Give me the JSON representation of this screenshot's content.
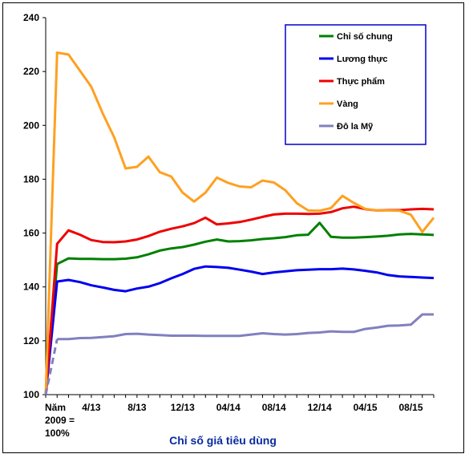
{
  "chart_data": {
    "type": "line",
    "xlabel": "Chỉ số giá tiêu dùng",
    "ylabel": "",
    "ylim": [
      100,
      240
    ],
    "y_ticks": [
      "100",
      "120",
      "140",
      "160",
      "180",
      "200",
      "220",
      "240"
    ],
    "x_ticks": [
      {
        "lines": [
          "Năm",
          "2009 =",
          "100%"
        ],
        "index": 0
      },
      {
        "lines": [
          "4/13"
        ],
        "index": 4
      },
      {
        "lines": [
          "8/13"
        ],
        "index": 8
      },
      {
        "lines": [
          "12/13"
        ],
        "index": 12
      },
      {
        "lines": [
          "04/14"
        ],
        "index": 16
      },
      {
        "lines": [
          "08/14"
        ],
        "index": 20
      },
      {
        "lines": [
          "12/14"
        ],
        "index": 24
      },
      {
        "lines": [
          "04/15"
        ],
        "index": 28
      },
      {
        "lines": [
          "08/15"
        ],
        "index": 32
      }
    ],
    "x_count": 35,
    "grid": false,
    "legend_position": "top-right",
    "series": [
      {
        "name": "Chỉ số chung",
        "color": "#008000",
        "values": [
          100,
          148.5,
          150.6,
          150.4,
          150.4,
          150.3,
          150.3,
          150.5,
          151,
          152.1,
          153.5,
          154.3,
          154.8,
          155.7,
          156.8,
          157.6,
          156.9,
          157,
          157.3,
          157.8,
          158.1,
          158.5,
          159.2,
          159.4,
          163.8,
          158.6,
          158.3,
          158.3,
          158.5,
          158.7,
          159,
          159.5,
          159.7,
          159.5,
          159.3
        ]
      },
      {
        "name": "Lương thực",
        "color": "#0000ee",
        "values": [
          100,
          142,
          142.6,
          141.8,
          140.6,
          139.8,
          138.9,
          138.4,
          139.4,
          140.1,
          141.4,
          143.2,
          144.8,
          146.7,
          147.6,
          147.4,
          147.1,
          146.4,
          145.7,
          144.8,
          145.4,
          145.8,
          146.2,
          146.4,
          146.6,
          146.6,
          146.8,
          146.5,
          146,
          145.4,
          144.4,
          143.9,
          143.7,
          143.5,
          143.3
        ]
      },
      {
        "name": "Thực phẩm",
        "color": "#ee0000",
        "values": [
          100,
          156,
          161,
          159.4,
          157.4,
          156.7,
          156.6,
          156.9,
          157.6,
          158.9,
          160.5,
          161.6,
          162.5,
          163.7,
          165.7,
          163.2,
          163.6,
          164.1,
          165,
          166,
          166.9,
          167.2,
          167.2,
          167.1,
          167.2,
          167.8,
          169.2,
          169.8,
          168.9,
          168.4,
          168.5,
          168.5,
          168.8,
          169,
          168.8
        ]
      },
      {
        "name": "Vàng",
        "color": "#ffa020",
        "values": [
          100,
          227,
          226.3,
          220.3,
          214.3,
          204.4,
          195.6,
          184,
          184.6,
          188.4,
          182.6,
          181,
          175,
          171.7,
          175,
          180.6,
          178.6,
          177.3,
          177,
          179.5,
          178.8,
          175.9,
          171.1,
          168.4,
          168.3,
          169.3,
          173.8,
          171.2,
          169,
          168.4,
          168.4,
          168.3,
          166.8,
          160.4,
          165.7
        ]
      },
      {
        "name": "Đô la Mỹ",
        "color": "#8080c0",
        "dashed_start": true,
        "values": [
          100,
          120.6,
          120.6,
          121,
          121.1,
          121.4,
          121.7,
          122.5,
          122.6,
          122.3,
          122.1,
          121.9,
          121.9,
          121.9,
          121.8,
          121.8,
          121.8,
          121.8,
          122.3,
          122.8,
          122.5,
          122.3,
          122.5,
          122.9,
          123.1,
          123.5,
          123.3,
          123.3,
          124.4,
          124.9,
          125.6,
          125.7,
          126,
          129.8,
          129.8
        ]
      }
    ]
  }
}
